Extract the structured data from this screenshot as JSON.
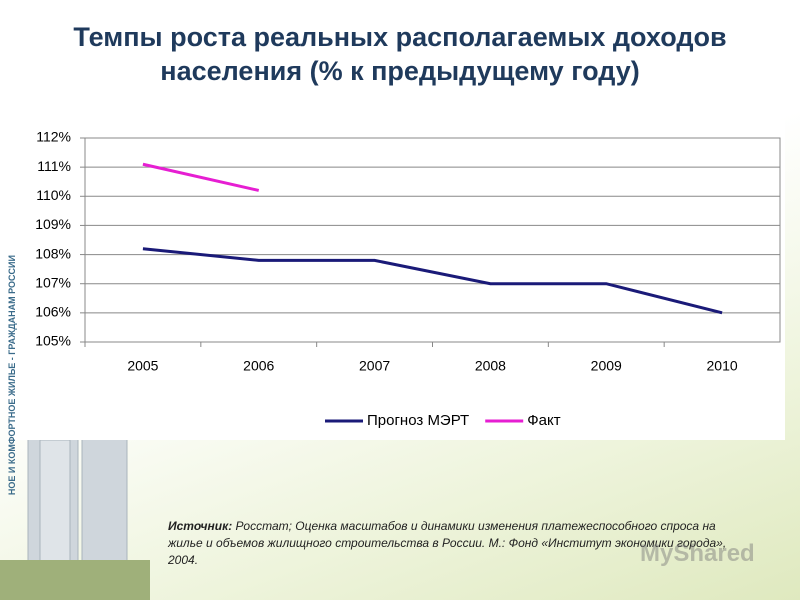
{
  "title": "Темпы роста реальных располагаемых доходов населения (% к предыдущему году)",
  "side_text": "НОЕ И КОМФОРТНОЕ ЖИЛЬЕ - ГРАЖДАНАМ РОССИИ",
  "source_label": "Источник:",
  "source_text": "Росстат; Оценка масштабов и динамики изменения платежеспособного спроса на жилье и объемов жилищного строительства в России. М.: Фонд «Институт экономики города», 2004.",
  "watermark": "MyShared",
  "chart_data": {
    "type": "line",
    "categories": [
      "2005",
      "2006",
      "2007",
      "2008",
      "2009",
      "2010"
    ],
    "series": [
      {
        "name": "Прогноз МЭРТ",
        "color": "#1a1a78",
        "values": [
          108.2,
          107.8,
          107.8,
          107.0,
          107.0,
          106.0
        ]
      },
      {
        "name": "Факт",
        "color": "#e61ed2",
        "values": [
          111.1,
          110.2,
          null,
          null,
          null,
          null
        ]
      }
    ],
    "ylim": [
      105,
      112
    ],
    "yticks": [
      {
        "value": 105,
        "label": "105%"
      },
      {
        "value": 106,
        "label": "106%"
      },
      {
        "value": 107,
        "label": "107%"
      },
      {
        "value": 108,
        "label": "108%"
      },
      {
        "value": 109,
        "label": "109%"
      },
      {
        "value": 110,
        "label": "110%"
      },
      {
        "value": 111,
        "label": "111%"
      },
      {
        "value": 112,
        "label": "112%"
      }
    ],
    "grid": true,
    "legend": "bottom"
  }
}
